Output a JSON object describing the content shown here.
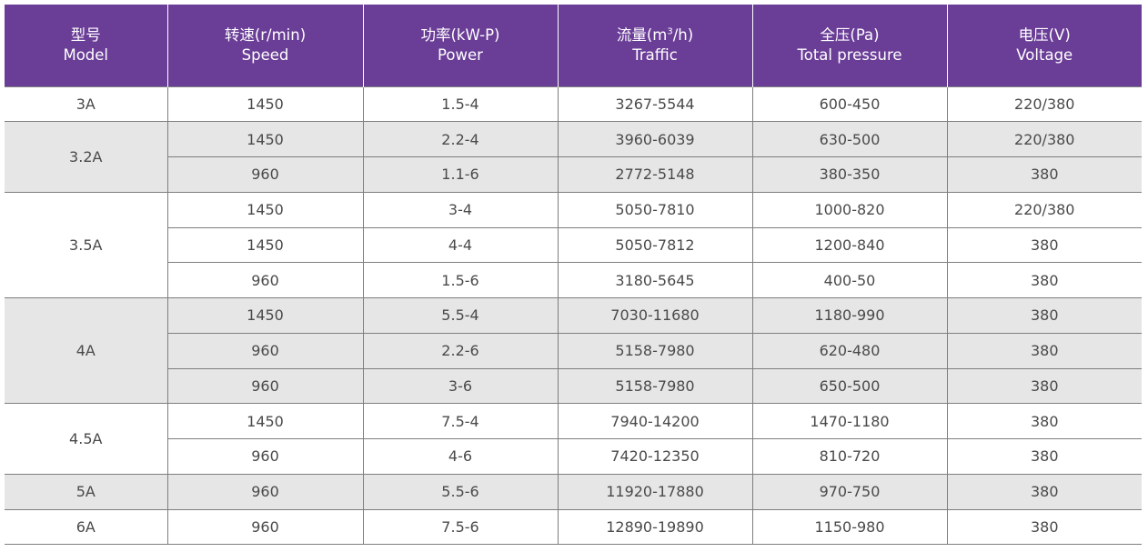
{
  "header": {
    "model_zh": "型号",
    "model_en": "Model",
    "speed_zh": "转速(r/min)",
    "speed_en": "Speed",
    "power_zh": "功率(kW-P)",
    "power_en": "Power",
    "flow_zh_prefix": "流量(m",
    "flow_zh_sup": "3",
    "flow_zh_suffix": "/h)",
    "flow_en": "Traffic",
    "pressure_zh": "全压(Pa)",
    "pressure_en": "Total pressure",
    "voltage_zh": "电压(V)",
    "voltage_en": "Voltage"
  },
  "rows": [
    {
      "model": "3A",
      "speed": "1450",
      "power": "1.5-4",
      "flow": "3267-5544",
      "pressure": "600-450",
      "voltage": "220/380"
    },
    {
      "model": "3.2A",
      "speed": "1450",
      "power": "2.2-4",
      "flow": "3960-6039",
      "pressure": "630-500",
      "voltage": "220/380"
    },
    {
      "model": "",
      "speed": "960",
      "power": "1.1-6",
      "flow": "2772-5148",
      "pressure": "380-350",
      "voltage": "380"
    },
    {
      "model": "3.5A",
      "speed": "1450",
      "power": "3-4",
      "flow": "5050-7810",
      "pressure": "1000-820",
      "voltage": "220/380"
    },
    {
      "model": "",
      "speed": "1450",
      "power": "4-4",
      "flow": "5050-7812",
      "pressure": "1200-840",
      "voltage": "380"
    },
    {
      "model": "",
      "speed": "960",
      "power": "1.5-6",
      "flow": "3180-5645",
      "pressure": "400-50",
      "voltage": "380"
    },
    {
      "model": "4A",
      "speed": "1450",
      "power": "5.5-4",
      "flow": "7030-11680",
      "pressure": "1180-990",
      "voltage": "380"
    },
    {
      "model": "",
      "speed": "960",
      "power": "2.2-6",
      "flow": "5158-7980",
      "pressure": "620-480",
      "voltage": "380"
    },
    {
      "model": "",
      "speed": "960",
      "power": "3-6",
      "flow": "5158-7980",
      "pressure": "650-500",
      "voltage": "380"
    },
    {
      "model": "4.5A",
      "speed": "1450",
      "power": "7.5-4",
      "flow": "7940-14200",
      "pressure": "1470-1180",
      "voltage": "380"
    },
    {
      "model": "",
      "speed": "960",
      "power": "4-6",
      "flow": "7420-12350",
      "pressure": "810-720",
      "voltage": "380"
    },
    {
      "model": "5A",
      "speed": "960",
      "power": "5.5-6",
      "flow": "11920-17880",
      "pressure": "970-750",
      "voltage": "380"
    },
    {
      "model": "6A",
      "speed": "960",
      "power": "7.5-6",
      "flow": "12890-19890",
      "pressure": "1150-980",
      "voltage": "380"
    }
  ]
}
